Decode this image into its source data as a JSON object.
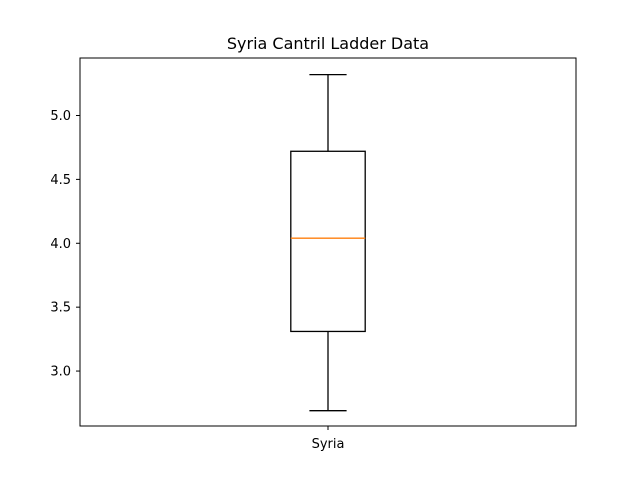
{
  "chart_data": {
    "type": "box",
    "title": "Syria Cantril Ladder Data",
    "xlabel": "",
    "ylabel": "",
    "categories": [
      "Syria"
    ],
    "boxes": [
      {
        "name": "Syria",
        "whisker_low": 2.69,
        "q1": 3.31,
        "median": 4.04,
        "q3": 4.72,
        "whisker_high": 5.32
      }
    ],
    "ylim": [
      2.57,
      5.45
    ],
    "yticks": [
      3.0,
      3.5,
      4.0,
      4.5,
      5.0
    ],
    "ytick_labels": [
      "3.0",
      "3.5",
      "4.0",
      "4.5",
      "5.0"
    ],
    "grid": false,
    "legend": "none",
    "colors": {
      "box": "#000000",
      "median": "#ff7f0e",
      "background": "#ffffff"
    }
  }
}
